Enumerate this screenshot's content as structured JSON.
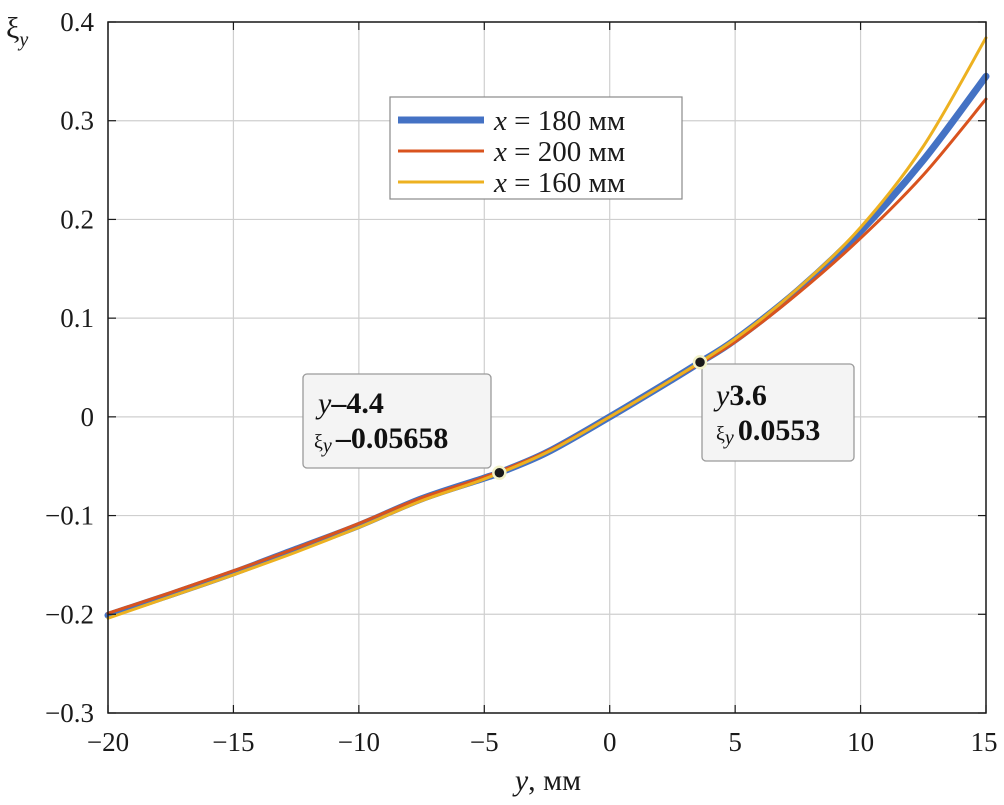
{
  "chart_data": {
    "type": "line",
    "xlabel_var": "y",
    "xlabel_unit": ", мм",
    "ylabel_symbol": "ξ",
    "ylabel_sub": "y",
    "xlim": [
      -20,
      15
    ],
    "ylim": [
      -0.3,
      0.4
    ],
    "xticks": [
      -20,
      -15,
      -10,
      -5,
      0,
      5,
      10,
      15
    ],
    "xtick_labels": [
      "−20",
      "−15",
      "−10",
      "−5",
      "0",
      "5",
      "10",
      "15"
    ],
    "yticks": [
      -0.3,
      -0.2,
      -0.1,
      0,
      0.1,
      0.2,
      0.3,
      0.4
    ],
    "ytick_labels": [
      "−0.3",
      "−0.2",
      "−0.1",
      "0",
      "0.1",
      "0.2",
      "0.3",
      "0.4"
    ],
    "grid": true,
    "legend_position": "top-center",
    "series": [
      {
        "name_var": "x",
        "name_rest": " = 180 мм",
        "color": "#4472C4",
        "x": [
          -20,
          -17.5,
          -15,
          -12.5,
          -10,
          -7.5,
          -5,
          -4.4,
          -2.5,
          0,
          2.5,
          3.6,
          5,
          7.5,
          10,
          12.5,
          15
        ],
        "values": [
          -0.201,
          -0.18,
          -0.158,
          -0.134,
          -0.11,
          -0.083,
          -0.062,
          -0.05658,
          -0.036,
          0.0,
          0.038,
          0.0553,
          0.078,
          0.128,
          0.188,
          0.26,
          0.345
        ]
      },
      {
        "name_var": "x",
        "name_rest": " = 200 мм",
        "color": "#D9531E",
        "x": [
          -20,
          -17.5,
          -15,
          -12.5,
          -10,
          -7.5,
          -5,
          -2.5,
          0,
          2.5,
          5,
          7.5,
          10,
          12.5,
          15
        ],
        "values": [
          -0.199,
          -0.178,
          -0.156,
          -0.133,
          -0.108,
          -0.082,
          -0.061,
          -0.035,
          0.0,
          0.038,
          0.076,
          0.125,
          0.181,
          0.245,
          0.322
        ]
      },
      {
        "name_var": "x",
        "name_rest": " = 160 мм",
        "color": "#EDB120",
        "x": [
          -20,
          -17.5,
          -15,
          -12.5,
          -10,
          -7.5,
          -5,
          -2.5,
          0,
          2.5,
          5,
          7.5,
          10,
          12.5,
          15
        ],
        "values": [
          -0.204,
          -0.182,
          -0.16,
          -0.137,
          -0.112,
          -0.085,
          -0.063,
          -0.036,
          0.0,
          0.038,
          0.079,
          0.13,
          0.192,
          0.274,
          0.384
        ]
      }
    ],
    "datatips": [
      {
        "x": -4.4,
        "y": -0.05658,
        "x_var": "y",
        "x_text": "-4.4",
        "y_sym": "ξ",
        "y_sub": "y",
        "y_text": "-0.05658"
      },
      {
        "x": 3.6,
        "y": 0.0553,
        "x_var": "y",
        "x_text": "3.6",
        "y_sym": "ξ",
        "y_sub": "y",
        "y_text": "0.0553"
      }
    ]
  }
}
